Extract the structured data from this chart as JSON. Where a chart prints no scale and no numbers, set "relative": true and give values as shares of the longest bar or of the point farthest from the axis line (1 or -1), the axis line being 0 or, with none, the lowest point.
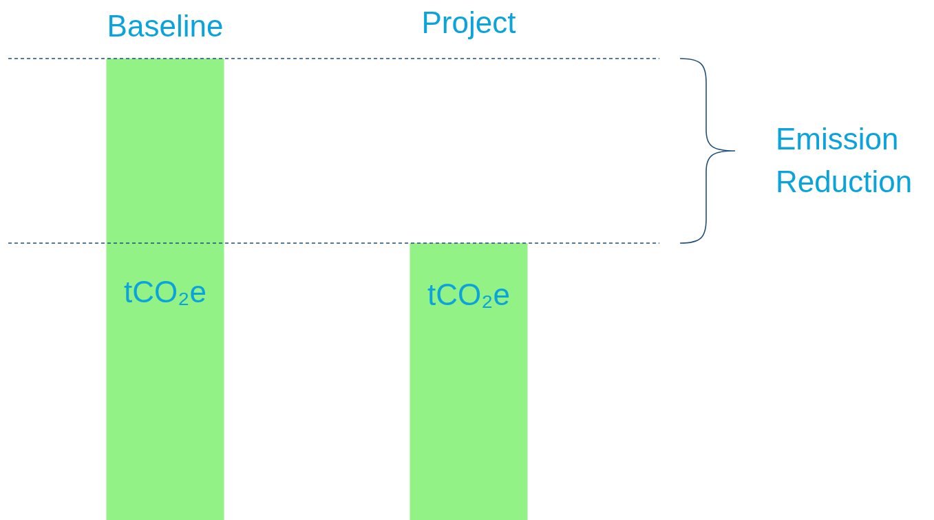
{
  "chart_data": {
    "type": "bar",
    "relative": true,
    "categories": [
      "Baseline",
      "Project"
    ],
    "values": [
      1,
      0.6
    ],
    "color": "#92f285",
    "ref_lines": [
      {
        "axis": "y",
        "value": 1,
        "color": "#1f4e79",
        "line_style": "dashed"
      },
      {
        "axis": "y",
        "value": 0.6,
        "color": "#1f4e79",
        "line_style": "dashed"
      }
    ],
    "annotations": [
      "tCO₂e",
      "tCO₂e",
      "Emission Reduction"
    ]
  }
}
